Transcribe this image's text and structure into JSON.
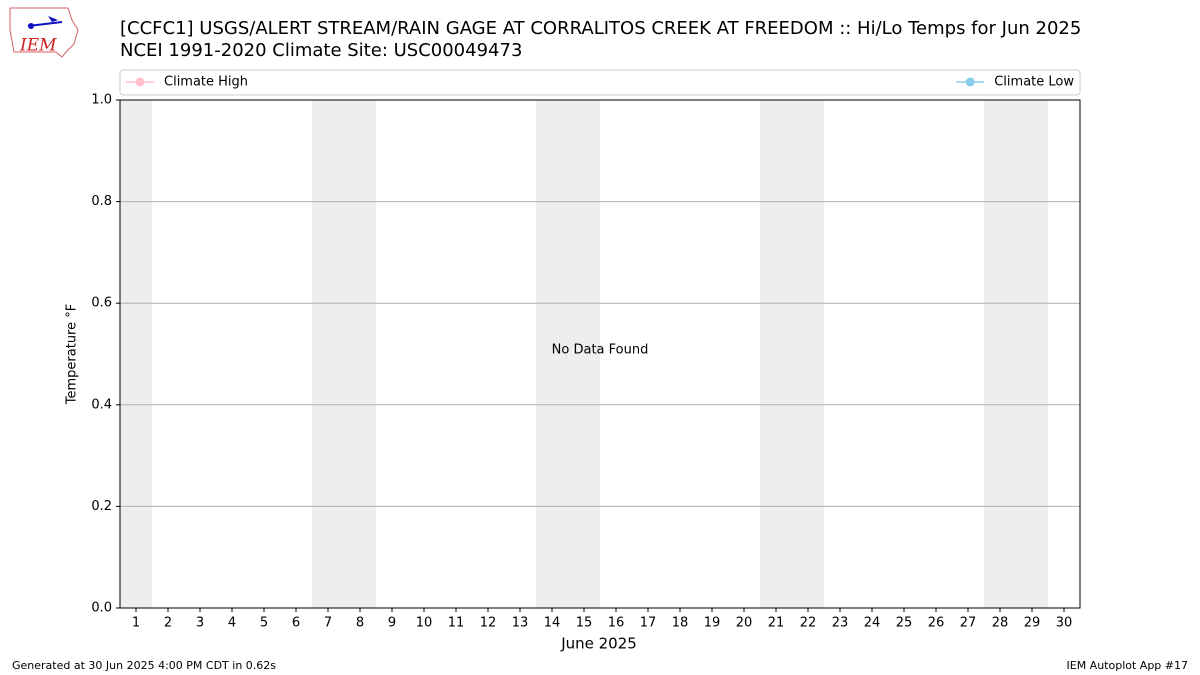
{
  "chart_data": {
    "type": "line",
    "title": "[CCFC1] USGS/ALERT STREAM/RAIN GAGE  AT CORRALITOS CREEK AT FREEDOM :: Hi/Lo Temps for Jun 2025",
    "subtitle": "NCEI 1991-2020 Climate Site: USC00049473",
    "xlabel": "June 2025",
    "ylabel": "Temperature $^\\circ$F",
    "ylabel_printed": "Temperature °F",
    "annotation": "No Data Found",
    "footer_left": "Generated at 30 Jun 2025 4:00 PM CDT in 0.62s",
    "footer_right": "IEM Autoplot App #17",
    "logo": "IEM",
    "x": [],
    "series": [
      {
        "name": "Climate High",
        "color": "#ffc0cb",
        "values": []
      },
      {
        "name": "Climate Low",
        "color": "#87ceeb",
        "values": []
      }
    ],
    "xlim": [
      0.5,
      30.5
    ],
    "xticks": [
      1,
      2,
      3,
      4,
      5,
      6,
      7,
      8,
      9,
      10,
      11,
      12,
      13,
      14,
      15,
      16,
      17,
      18,
      19,
      20,
      21,
      22,
      23,
      24,
      25,
      26,
      27,
      28,
      29,
      30
    ],
    "ylim": [
      0,
      1
    ],
    "yticks": [
      {
        "value": 0,
        "label": "0.0"
      },
      {
        "value": 0.2,
        "label": "0.2"
      },
      {
        "value": 0.4,
        "label": "0.4"
      },
      {
        "value": 0.6,
        "label": "0.6"
      },
      {
        "value": 0.8,
        "label": "0.8"
      },
      {
        "value": 1,
        "label": "1.0"
      }
    ],
    "grid": true,
    "legend": "top"
  }
}
